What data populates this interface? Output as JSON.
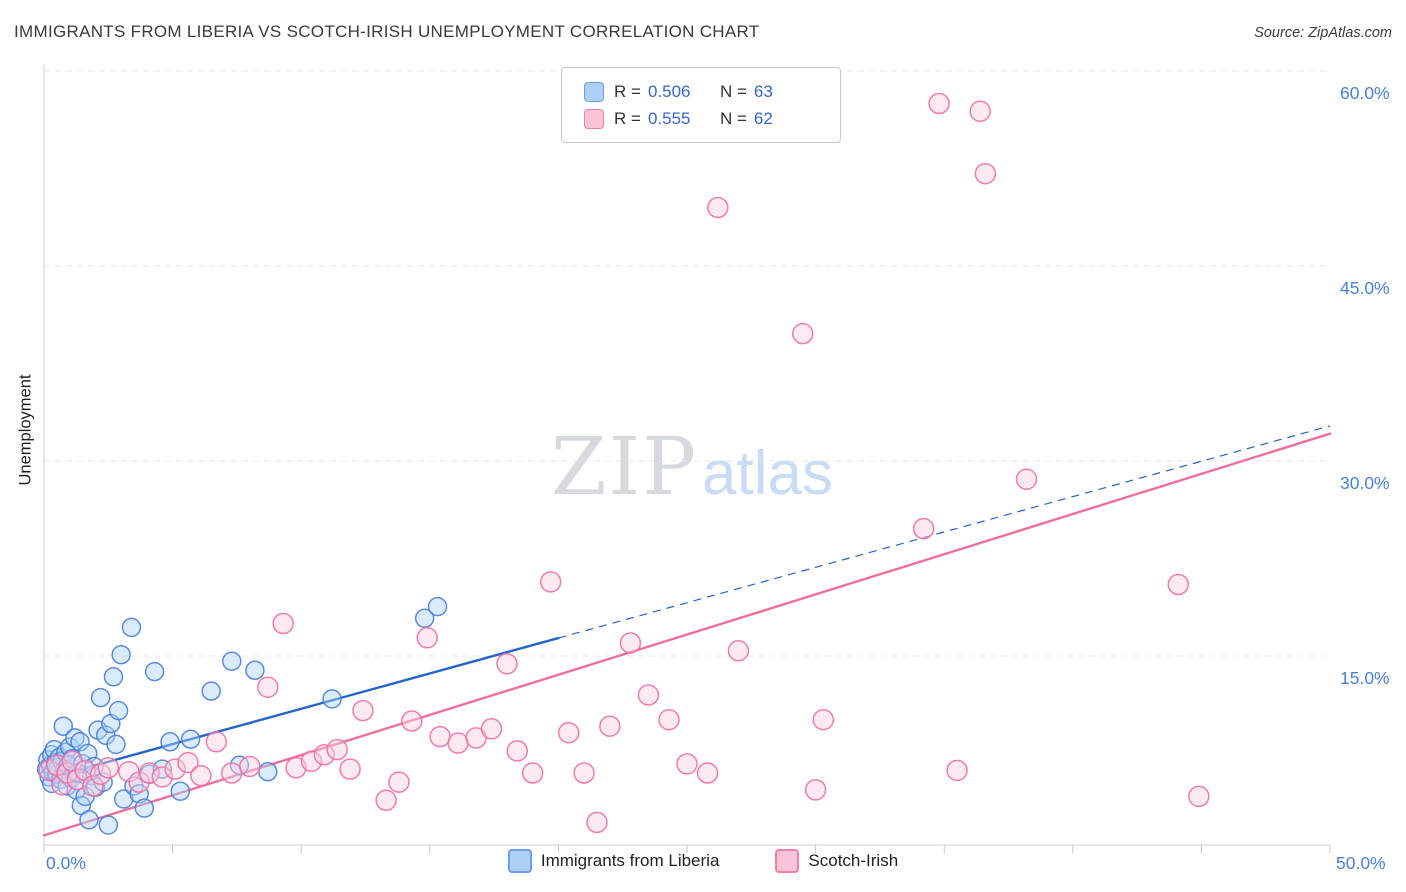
{
  "header": {
    "title": "IMMIGRANTS FROM LIBERIA VS SCOTCH-IRISH UNEMPLOYMENT CORRELATION CHART",
    "source": "Source: ZipAtlas.com"
  },
  "watermark": {
    "zip": "ZIP",
    "atlas": "atlas"
  },
  "legend_box": {
    "series": [
      {
        "r_label": "R =",
        "r_value": "0.506",
        "n_label": "N =",
        "n_value": "63"
      },
      {
        "r_label": "R =",
        "r_value": "0.555",
        "n_label": "N =",
        "n_value": "62"
      }
    ]
  },
  "chart_data": {
    "type": "scatter",
    "title": "Immigrants from Liberia vs Scotch-Irish Unemployment Correlation",
    "xlabel": "",
    "ylabel": "Unemployment",
    "grid": "horizontal-dashed",
    "legend_position": "bottom-center",
    "x_axis": {
      "min": 0,
      "max": 50,
      "unit": "%",
      "tick_step": 5,
      "min_label": "0.0%",
      "max_label": "50.0%"
    },
    "y_axis": {
      "min": 0,
      "max": 62,
      "unit": "%",
      "side": "right",
      "ticks": [
        15,
        30,
        45,
        60
      ],
      "tick_labels": [
        "15.0%",
        "30.0%",
        "45.0%",
        "60.0%"
      ]
    },
    "series": [
      {
        "name": "Immigrants from Liberia",
        "R": 0.506,
        "N": 63,
        "stroke": "#4a7fd6",
        "fill": "#add2f7",
        "points": [
          [
            0.1,
            6.3
          ],
          [
            0.15,
            7.0
          ],
          [
            0.2,
            5.7
          ],
          [
            0.25,
            6.6
          ],
          [
            0.3,
            7.4
          ],
          [
            0.3,
            5.2
          ],
          [
            0.35,
            6.1
          ],
          [
            0.4,
            7.8
          ],
          [
            0.45,
            6.8
          ],
          [
            0.5,
            5.9
          ],
          [
            0.55,
            6.4
          ],
          [
            0.6,
            7.2
          ],
          [
            0.65,
            5.5
          ],
          [
            0.7,
            6.9
          ],
          [
            0.75,
            9.6
          ],
          [
            0.8,
            6.2
          ],
          [
            0.85,
            7.6
          ],
          [
            0.9,
            5.0
          ],
          [
            0.95,
            6.6
          ],
          [
            1.0,
            8.0
          ],
          [
            1.05,
            5.6
          ],
          [
            1.1,
            7.1
          ],
          [
            1.2,
            8.7
          ],
          [
            1.25,
            4.7
          ],
          [
            1.3,
            6.0
          ],
          [
            1.4,
            8.4
          ],
          [
            1.45,
            3.5
          ],
          [
            1.5,
            6.7
          ],
          [
            1.6,
            4.2
          ],
          [
            1.7,
            7.5
          ],
          [
            1.75,
            2.4
          ],
          [
            1.85,
            5.8
          ],
          [
            1.95,
            6.5
          ],
          [
            2.0,
            4.9
          ],
          [
            2.1,
            9.3
          ],
          [
            2.2,
            11.8
          ],
          [
            2.3,
            5.3
          ],
          [
            2.4,
            8.9
          ],
          [
            2.5,
            2.0
          ],
          [
            2.6,
            9.8
          ],
          [
            2.7,
            13.4
          ],
          [
            2.8,
            8.2
          ],
          [
            2.9,
            10.8
          ],
          [
            3.0,
            15.1
          ],
          [
            3.1,
            4.0
          ],
          [
            3.4,
            17.2
          ],
          [
            3.5,
            5.0
          ],
          [
            3.7,
            4.4
          ],
          [
            3.9,
            3.3
          ],
          [
            4.1,
            5.9
          ],
          [
            4.3,
            13.8
          ],
          [
            4.6,
            6.3
          ],
          [
            4.9,
            8.4
          ],
          [
            5.3,
            4.6
          ],
          [
            5.7,
            8.6
          ],
          [
            6.5,
            12.3
          ],
          [
            7.3,
            14.6
          ],
          [
            7.6,
            6.6
          ],
          [
            8.2,
            13.9
          ],
          [
            8.7,
            6.1
          ],
          [
            11.2,
            11.7
          ],
          [
            14.8,
            17.9
          ],
          [
            15.3,
            18.8
          ]
        ]
      },
      {
        "name": "Scotch-Irish",
        "R": 0.555,
        "N": 62,
        "stroke": "#ee6fa4",
        "fill": "#fbd0e0",
        "points": [
          [
            0.2,
            6.2
          ],
          [
            0.5,
            6.6
          ],
          [
            0.7,
            5.1
          ],
          [
            0.9,
            6.0
          ],
          [
            1.1,
            6.9
          ],
          [
            1.3,
            5.5
          ],
          [
            1.6,
            6.2
          ],
          [
            1.9,
            5.0
          ],
          [
            2.2,
            5.9
          ],
          [
            2.5,
            6.4
          ],
          [
            3.3,
            6.1
          ],
          [
            3.7,
            5.3
          ],
          [
            4.1,
            6.0
          ],
          [
            4.6,
            5.7
          ],
          [
            5.1,
            6.3
          ],
          [
            5.6,
            6.8
          ],
          [
            6.1,
            5.8
          ],
          [
            6.7,
            8.4
          ],
          [
            7.3,
            6.0
          ],
          [
            8.0,
            6.5
          ],
          [
            8.7,
            12.6
          ],
          [
            9.3,
            17.5
          ],
          [
            9.8,
            6.4
          ],
          [
            10.4,
            6.9
          ],
          [
            10.9,
            7.4
          ],
          [
            11.4,
            7.8
          ],
          [
            11.9,
            6.3
          ],
          [
            12.4,
            10.8
          ],
          [
            13.3,
            3.9
          ],
          [
            13.8,
            5.3
          ],
          [
            14.3,
            10.0
          ],
          [
            14.9,
            16.4
          ],
          [
            15.4,
            8.8
          ],
          [
            16.1,
            8.3
          ],
          [
            16.8,
            8.7
          ],
          [
            17.4,
            9.4
          ],
          [
            18.0,
            14.4
          ],
          [
            18.4,
            7.7
          ],
          [
            19.0,
            6.0
          ],
          [
            19.7,
            20.7
          ],
          [
            20.4,
            9.1
          ],
          [
            21.0,
            6.0
          ],
          [
            21.5,
            2.2
          ],
          [
            22.0,
            9.6
          ],
          [
            22.8,
            16.0
          ],
          [
            23.5,
            12.0
          ],
          [
            24.3,
            10.1
          ],
          [
            25.0,
            6.7
          ],
          [
            25.8,
            6.0
          ],
          [
            26.2,
            49.5
          ],
          [
            27.0,
            15.4
          ],
          [
            29.5,
            39.8
          ],
          [
            30.0,
            4.7
          ],
          [
            30.3,
            10.1
          ],
          [
            34.2,
            24.8
          ],
          [
            34.8,
            57.5
          ],
          [
            35.5,
            6.2
          ],
          [
            36.4,
            56.9
          ],
          [
            36.6,
            52.1
          ],
          [
            38.2,
            28.6
          ],
          [
            44.1,
            20.5
          ],
          [
            44.9,
            4.2
          ]
        ]
      }
    ],
    "trend_lines": [
      {
        "series": "Immigrants from Liberia",
        "color": "#2563c9",
        "start": [
          0,
          5.5
        ],
        "end": [
          50,
          32.7
        ],
        "solid_until": 20,
        "extension": "dashed"
      },
      {
        "series": "Scotch-Irish",
        "color": "#ec6f9f",
        "start": [
          0,
          1.2
        ],
        "end": [
          50,
          32.1
        ],
        "extension": "none"
      }
    ]
  }
}
